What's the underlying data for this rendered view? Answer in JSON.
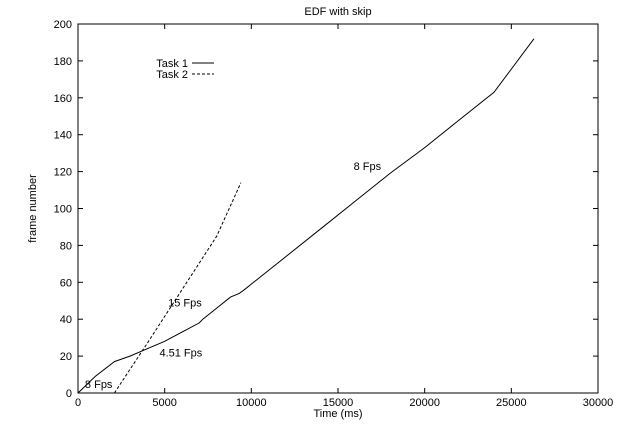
{
  "chart_data": {
    "type": "line",
    "title": "EDF with skip",
    "xlabel": "Time (ms)",
    "ylabel": "frame number",
    "xlim": [
      0,
      30000
    ],
    "ylim": [
      0,
      200
    ],
    "xticks": [
      0,
      5000,
      10000,
      15000,
      20000,
      25000,
      30000
    ],
    "yticks": [
      0,
      20,
      40,
      60,
      80,
      100,
      120,
      140,
      160,
      180,
      200
    ],
    "grid": false,
    "legend": "top-left",
    "series": [
      {
        "name": "Task 1",
        "style": "solid",
        "color": "#000000",
        "points": [
          [
            0,
            0
          ],
          [
            1000,
            9
          ],
          [
            2100,
            17
          ],
          [
            3000,
            20
          ],
          [
            4000,
            24
          ],
          [
            5000,
            28
          ],
          [
            6000,
            33
          ],
          [
            7000,
            38
          ],
          [
            7200,
            40
          ],
          [
            8000,
            46
          ],
          [
            8800,
            52
          ],
          [
            9300,
            54
          ],
          [
            9600,
            56
          ],
          [
            10000,
            59
          ],
          [
            12000,
            74
          ],
          [
            14000,
            89
          ],
          [
            16000,
            104
          ],
          [
            18000,
            119
          ],
          [
            20000,
            133
          ],
          [
            22000,
            148
          ],
          [
            24000,
            163
          ],
          [
            26300,
            192
          ]
        ]
      },
      {
        "name": "Task 2",
        "style": "dashed",
        "color": "#000000",
        "points": [
          [
            2100,
            0
          ],
          [
            4000,
            27
          ],
          [
            6000,
            56
          ],
          [
            8000,
            85
          ],
          [
            9400,
            114
          ]
        ]
      }
    ],
    "annotations": [
      {
        "text": "8 Fps",
        "x": 400,
        "y": 5
      },
      {
        "text": "4.51 Fps",
        "x": 4700,
        "y": 22
      },
      {
        "text": "15 Fps",
        "x": 5200,
        "y": 49
      },
      {
        "text": "8 Fps",
        "x": 15900,
        "y": 123
      }
    ]
  }
}
